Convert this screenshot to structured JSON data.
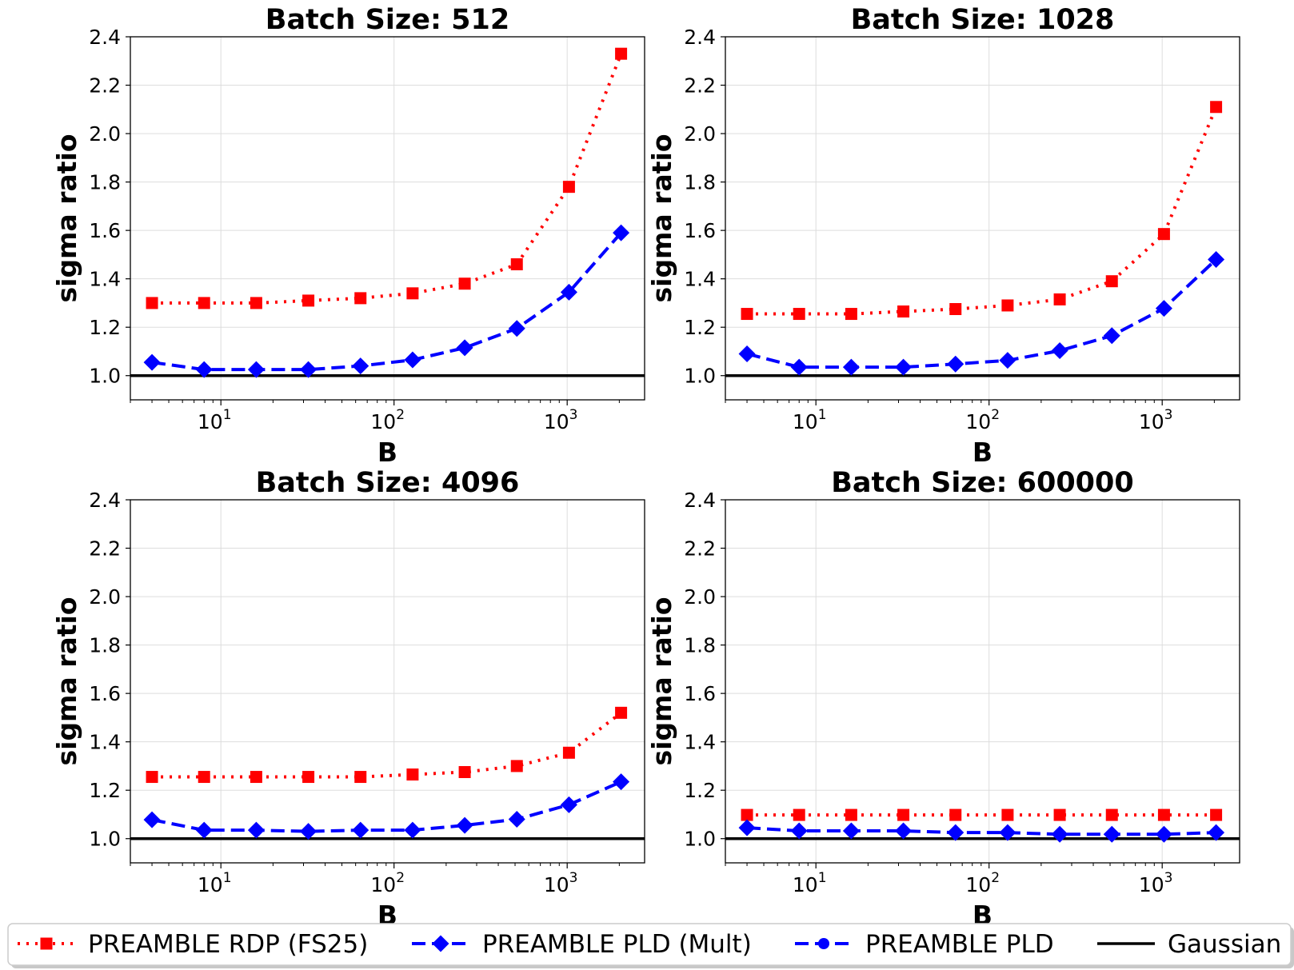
{
  "chart_data": [
    {
      "type": "line",
      "title": "Batch Size: 512",
      "xlabel": "B",
      "ylabel": "sigma ratio",
      "xscale": "log",
      "xlim": [
        3,
        2800
      ],
      "ylim": [
        0.9,
        2.4
      ],
      "yticks": [
        "1.0",
        "1.2",
        "1.4",
        "1.6",
        "1.8",
        "2.0",
        "2.2",
        "2.4"
      ],
      "xticks": [
        {
          "base": "10",
          "exp": "1"
        },
        {
          "base": "10",
          "exp": "2"
        },
        {
          "base": "10",
          "exp": "3"
        }
      ],
      "grid": true,
      "x": [
        4,
        8,
        16,
        32,
        64,
        128,
        256,
        512,
        1024,
        2048
      ],
      "series": [
        {
          "name": "PREAMBLE RDP (FS25)",
          "values": [
            1.3,
            1.3,
            1.3,
            1.31,
            1.32,
            1.34,
            1.38,
            1.46,
            1.78,
            2.33
          ]
        },
        {
          "name": "PREAMBLE PLD (Mult)",
          "values": [
            1.055,
            1.025,
            1.025,
            1.025,
            1.04,
            1.065,
            1.115,
            1.195,
            1.345,
            1.59
          ]
        }
      ],
      "hline": {
        "name": "Gaussian",
        "value": 1.0
      }
    },
    {
      "type": "line",
      "title": "Batch Size: 1028",
      "xlabel": "B",
      "ylabel": "sigma ratio",
      "xscale": "log",
      "xlim": [
        3,
        2800
      ],
      "ylim": [
        0.9,
        2.4
      ],
      "yticks": [
        "1.0",
        "1.2",
        "1.4",
        "1.6",
        "1.8",
        "2.0",
        "2.2",
        "2.4"
      ],
      "xticks": [
        {
          "base": "10",
          "exp": "1"
        },
        {
          "base": "10",
          "exp": "2"
        },
        {
          "base": "10",
          "exp": "3"
        }
      ],
      "grid": true,
      "x": [
        4,
        8,
        16,
        32,
        64,
        128,
        256,
        512,
        1024,
        2048
      ],
      "series": [
        {
          "name": "PREAMBLE RDP (FS25)",
          "values": [
            1.255,
            1.255,
            1.255,
            1.265,
            1.275,
            1.29,
            1.315,
            1.39,
            1.585,
            2.11
          ]
        },
        {
          "name": "PREAMBLE PLD (Mult)",
          "values": [
            1.09,
            1.035,
            1.035,
            1.035,
            1.048,
            1.063,
            1.103,
            1.165,
            1.278,
            1.48
          ]
        }
      ],
      "hline": {
        "name": "Gaussian",
        "value": 1.0
      }
    },
    {
      "type": "line",
      "title": "Batch Size: 4096",
      "xlabel": "B",
      "ylabel": "sigma ratio",
      "xscale": "log",
      "xlim": [
        3,
        2800
      ],
      "ylim": [
        0.9,
        2.4
      ],
      "yticks": [
        "1.0",
        "1.2",
        "1.4",
        "1.6",
        "1.8",
        "2.0",
        "2.2",
        "2.4"
      ],
      "xticks": [
        {
          "base": "10",
          "exp": "1"
        },
        {
          "base": "10",
          "exp": "2"
        },
        {
          "base": "10",
          "exp": "3"
        }
      ],
      "grid": true,
      "x": [
        4,
        8,
        16,
        32,
        64,
        128,
        256,
        512,
        1024,
        2048
      ],
      "series": [
        {
          "name": "PREAMBLE RDP (FS25)",
          "values": [
            1.255,
            1.255,
            1.255,
            1.255,
            1.255,
            1.265,
            1.275,
            1.3,
            1.355,
            1.52
          ]
        },
        {
          "name": "PREAMBLE PLD (Mult)",
          "values": [
            1.078,
            1.035,
            1.035,
            1.03,
            1.035,
            1.035,
            1.055,
            1.08,
            1.14,
            1.235
          ]
        }
      ],
      "hline": {
        "name": "Gaussian",
        "value": 1.0
      }
    },
    {
      "type": "line",
      "title": "Batch Size: 600000",
      "xlabel": "B",
      "ylabel": "sigma ratio",
      "xscale": "log",
      "xlim": [
        3,
        2800
      ],
      "ylim": [
        0.9,
        2.4
      ],
      "yticks": [
        "1.0",
        "1.2",
        "1.4",
        "1.6",
        "1.8",
        "2.0",
        "2.2",
        "2.4"
      ],
      "xticks": [
        {
          "base": "10",
          "exp": "1"
        },
        {
          "base": "10",
          "exp": "2"
        },
        {
          "base": "10",
          "exp": "3"
        }
      ],
      "grid": true,
      "x": [
        4,
        8,
        16,
        32,
        64,
        128,
        256,
        512,
        1024,
        2048
      ],
      "series": [
        {
          "name": "PREAMBLE RDP (FS25)",
          "values": [
            1.098,
            1.098,
            1.098,
            1.098,
            1.098,
            1.098,
            1.098,
            1.098,
            1.098,
            1.098
          ]
        },
        {
          "name": "PREAMBLE PLD (Mult)",
          "values": [
            1.045,
            1.032,
            1.032,
            1.032,
            1.025,
            1.025,
            1.018,
            1.018,
            1.018,
            1.025
          ]
        }
      ],
      "hline": {
        "name": "Gaussian",
        "value": 1.0
      }
    }
  ],
  "legend": {
    "placement": "bottom",
    "entries": [
      {
        "label": "PREAMBLE RDP (FS25)",
        "color": "#ff0000",
        "linestyle": "dotted",
        "marker": "square"
      },
      {
        "label": "PREAMBLE PLD (Mult)",
        "color": "#0000ff",
        "linestyle": "dashed",
        "marker": "diamond"
      },
      {
        "label": "PREAMBLE PLD",
        "color": "#0000ff",
        "linestyle": "dashed",
        "marker": "circle"
      },
      {
        "label": "Gaussian",
        "color": "#000000",
        "linestyle": "solid",
        "marker": "none"
      }
    ]
  },
  "colors": {
    "rdp": "#ff0000",
    "pld": "#0000ff",
    "gaussian": "#000000",
    "grid": "#dddddd"
  }
}
